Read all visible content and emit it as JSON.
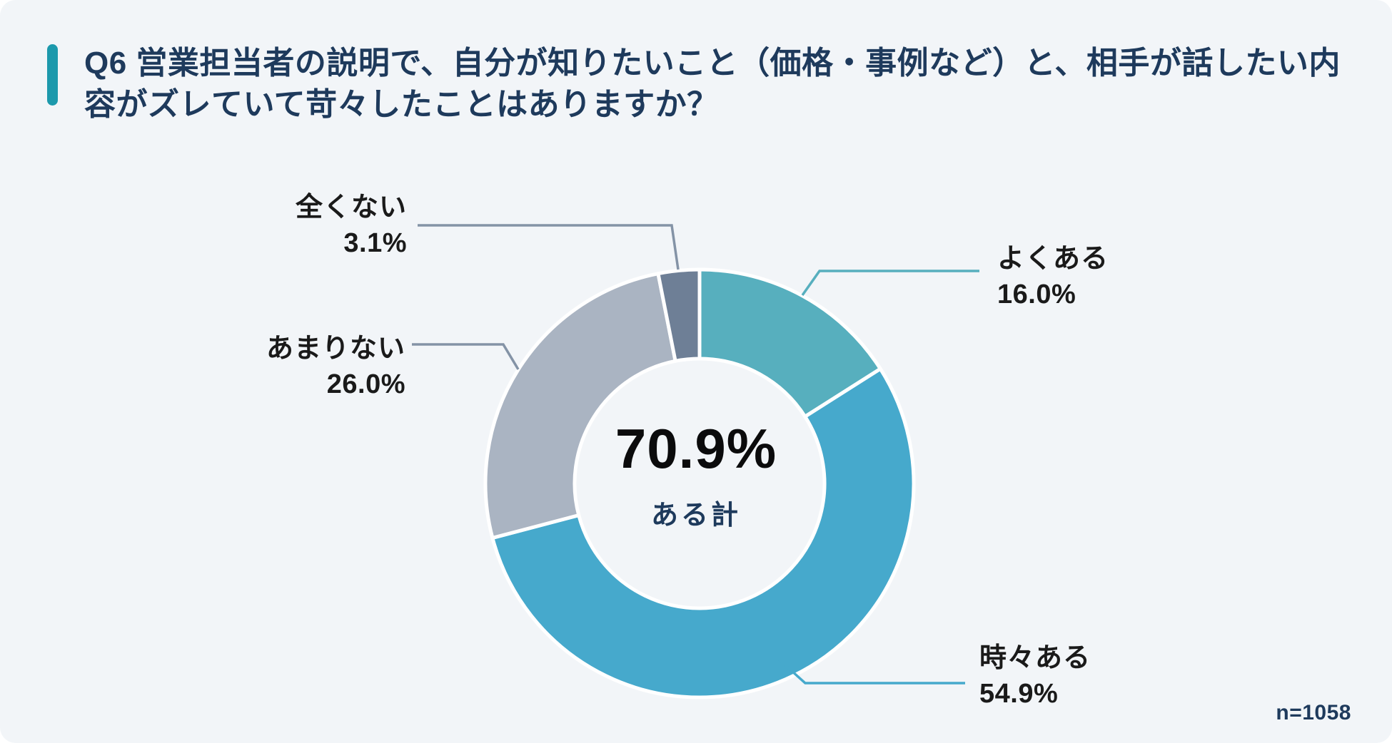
{
  "page": {
    "sample_size": "n=1058"
  },
  "theme": {
    "background": "#F2F5F8",
    "accent_bar": "#1C99AC",
    "title_color": "#1E3A5C",
    "label_color": "#1A1A1A",
    "center_value_color": "#0B0B0C",
    "center_caption_color": "#1E3A5C",
    "slice_gap_color": "#FFFFFF",
    "gray_leader": "#8493A6"
  },
  "chart_data": {
    "type": "pie",
    "donut": true,
    "title": "Q6 営業担当者の説明で、自分が知りたいこと（価格・事例など）と、相手が話したい内容がズレていて苛々したことはありますか？",
    "start_angle_deg": 0,
    "direction": "clockwise",
    "center_label": {
      "value": "70.9%",
      "caption": "ある計"
    },
    "slices": [
      {
        "label": "よくある",
        "value": 16.0,
        "display": "16.0%",
        "color": "#57AFBE",
        "leader_color": "#57AFBE"
      },
      {
        "label": "時々ある",
        "value": 54.9,
        "display": "54.9%",
        "color": "#46A9CC",
        "leader_color": "#46A9CC"
      },
      {
        "label": "あまりない",
        "value": 26.0,
        "display": "26.0%",
        "color": "#AAB4C2",
        "leader_color": "#8493A6"
      },
      {
        "label": "全くない",
        "value": 3.1,
        "display": "3.1%",
        "color": "#6E7F96",
        "leader_color": "#8493A6"
      }
    ],
    "legend_position": "callout-labels",
    "grid": false
  }
}
